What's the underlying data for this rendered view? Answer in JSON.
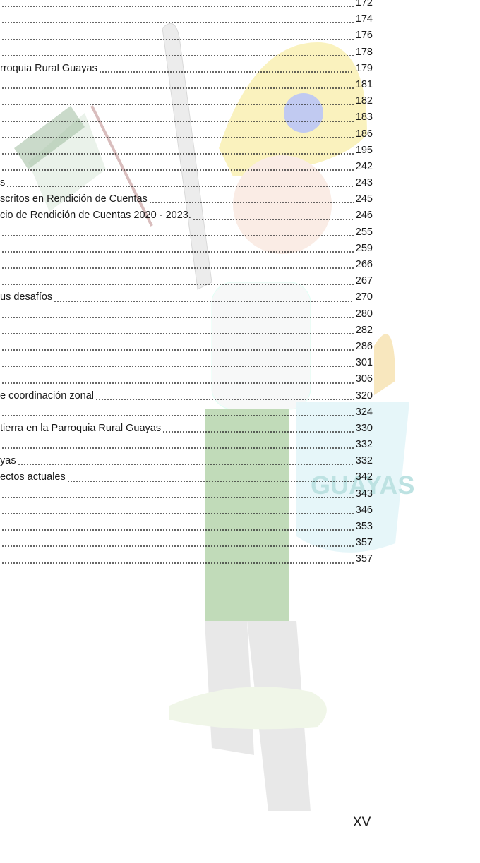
{
  "toc": {
    "entries": [
      {
        "page": "172"
      },
      {
        "page": "174"
      },
      {
        "page": "176"
      },
      {
        "page": "178"
      },
      {
        "title": "rroquia Rural Guayas",
        "page": "179"
      },
      {
        "page": "181"
      },
      {
        "page": "182"
      },
      {
        "page": "183"
      },
      {
        "page": "186"
      },
      {
        "page": "195"
      },
      {
        "page": "242"
      },
      {
        "title": "s",
        "page": "243"
      },
      {
        "title": "scritos en Rendición de Cuentas",
        "page": "245"
      },
      {
        "title": "cio de Rendición de Cuentas 2020 - 2023.",
        "page": "246"
      },
      {
        "page": "255"
      },
      {
        "page": "259"
      },
      {
        "page": "266"
      },
      {
        "page": "267"
      },
      {
        "title": "us desafíos",
        "page": "270"
      },
      {
        "page": "280"
      },
      {
        "page": "282"
      },
      {
        "page": "286"
      },
      {
        "page": "301"
      },
      {
        "page": "306"
      },
      {
        "title": "e coordinación zonal",
        "page": "320"
      },
      {
        "page": "324"
      },
      {
        "title": "tierra en la Parroquia Rural Guayas",
        "page": "330"
      },
      {
        "page": "332"
      },
      {
        "title": "yas",
        "page": "332"
      },
      {
        "title": "ectos actuales",
        "page": "342"
      },
      {
        "page": "343"
      },
      {
        "page": "346"
      },
      {
        "page": "353"
      },
      {
        "page": "357"
      },
      {
        "page": "357"
      }
    ]
  },
  "footer": {
    "page_number": "XV"
  }
}
